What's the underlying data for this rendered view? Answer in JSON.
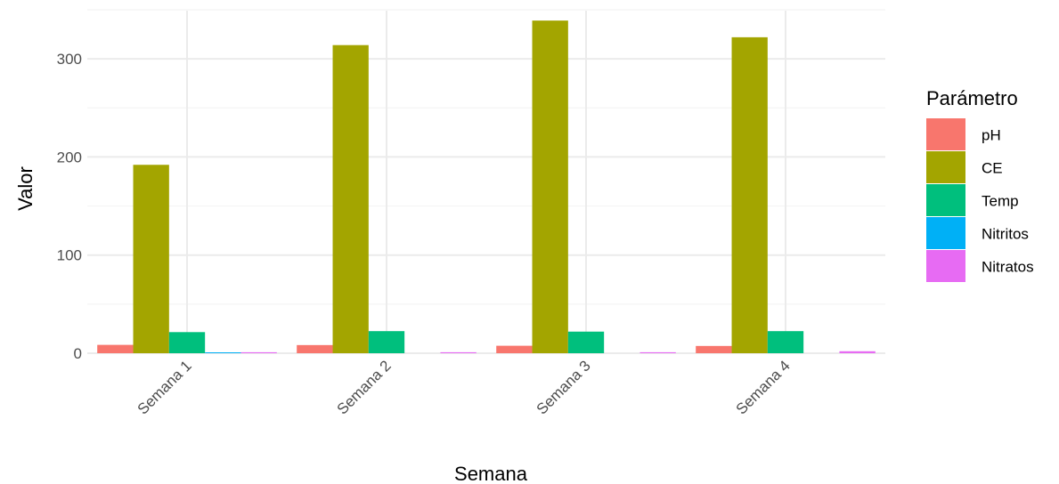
{
  "chart_data": {
    "type": "bar",
    "xlabel": "Semana",
    "ylabel": "Valor",
    "ylim": [
      0,
      350
    ],
    "yticks": [
      0,
      100,
      200,
      300
    ],
    "grid": true,
    "legend": {
      "title": "Parámetro",
      "placement": "right"
    },
    "categories": [
      "Semana 1",
      "Semana 2",
      "Semana 3",
      "Semana 4"
    ],
    "series": [
      {
        "name": "pH",
        "color": "#F8766D",
        "values": [
          8.5,
          8.3,
          7.6,
          7.4
        ]
      },
      {
        "name": "CE",
        "color": "#A3A500",
        "values": [
          192,
          314,
          339,
          322
        ]
      },
      {
        "name": "Temp",
        "color": "#00BF7D",
        "values": [
          21.5,
          22.5,
          22,
          22.5
        ]
      },
      {
        "name": "Nitritos",
        "color": "#00B0F6",
        "values": [
          0.5,
          0,
          0,
          0
        ]
      },
      {
        "name": "Nitratos",
        "color": "#E76BF3",
        "values": [
          1,
          1,
          1,
          2
        ]
      }
    ]
  }
}
